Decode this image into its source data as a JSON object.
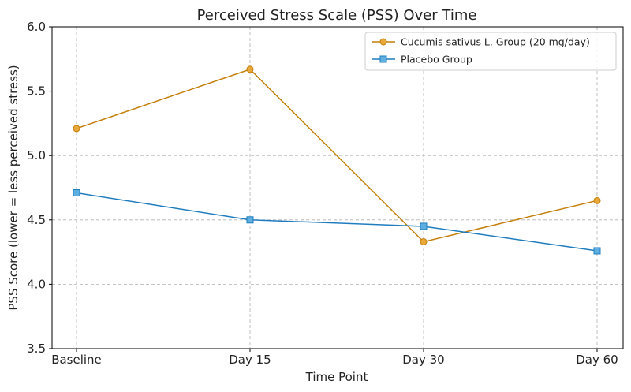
{
  "chart_data": {
    "type": "line",
    "title": "Perceived Stress Scale (PSS) Over Time",
    "xlabel": "Time Point",
    "ylabel": "PSS Score (lower = less perceived stress)",
    "categories": [
      "Baseline",
      "Day 15",
      "Day 30",
      "Day 60"
    ],
    "ylim": [
      3.5,
      6.0
    ],
    "yticks": [
      "3.5",
      "4.0",
      "4.5",
      "5.0",
      "5.5",
      "6.0"
    ],
    "grid": true,
    "legend_position": "top-right",
    "series": [
      {
        "name": "Cucumis sativus L. Group (20 mg/day)",
        "values": [
          5.21,
          5.67,
          4.33,
          4.65
        ],
        "color": "#c47f0a",
        "marker_fill": "#e8a83a",
        "marker": "circle"
      },
      {
        "name": "Placebo Group",
        "values": [
          4.71,
          4.5,
          4.45,
          4.26
        ],
        "color": "#1f7dbf",
        "marker_fill": "#5fb0e0",
        "marker": "square"
      }
    ]
  }
}
